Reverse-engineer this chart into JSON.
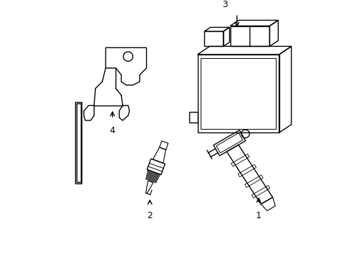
{
  "background_color": "#ffffff",
  "line_color": "#000000",
  "line_width": 1.0,
  "label_fontsize": 9,
  "figsize": [
    4.89,
    3.6
  ],
  "dpi": 100
}
